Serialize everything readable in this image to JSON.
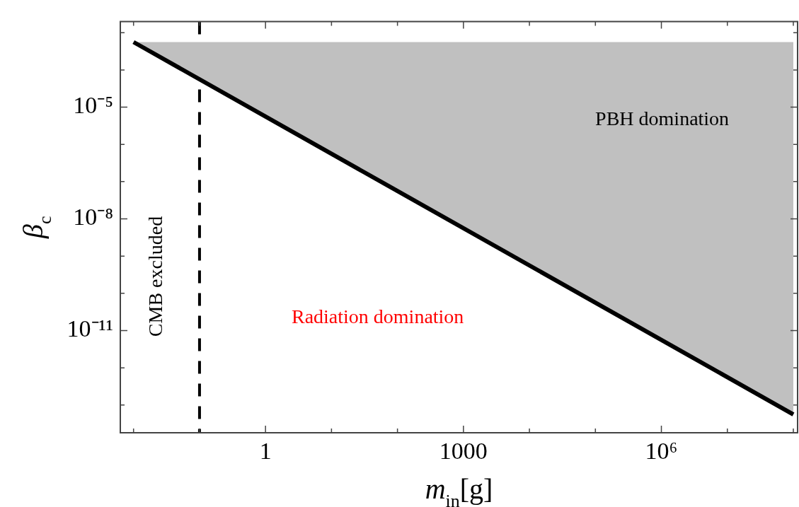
{
  "chart_data": {
    "type": "line",
    "xlabel": "m$_{in}$[g]",
    "ylabel": "β$_{c}$",
    "log": "xy",
    "grid": false,
    "legend": false,
    "xlim": [
      0.0063,
      116000000.0
    ],
    "ylim": [
      1.8e-14,
      0.002
    ],
    "xticks": [
      {
        "value": 0.01,
        "label": null
      },
      {
        "value": 0.1,
        "label": null
      },
      {
        "value": 1,
        "label": "1"
      },
      {
        "value": 10,
        "label": null
      },
      {
        "value": 100,
        "label": null
      },
      {
        "value": 1000,
        "label": "1000"
      },
      {
        "value": 10000,
        "label": null
      },
      {
        "value": 100000,
        "label": null
      },
      {
        "value": 1000000,
        "label": "10⁶"
      },
      {
        "value": 10000000,
        "label": null
      },
      {
        "value": 100000000,
        "label": null
      }
    ],
    "yticks": [
      {
        "value": 0.001,
        "label": null
      },
      {
        "value": 0.0001,
        "label": null
      },
      {
        "value": 1e-05,
        "label": "10⁻⁵"
      },
      {
        "value": 1e-06,
        "label": null
      },
      {
        "value": 1e-07,
        "label": null
      },
      {
        "value": 1e-08,
        "label": "10⁻⁸"
      },
      {
        "value": 1e-09,
        "label": null
      },
      {
        "value": 1e-10,
        "label": null
      },
      {
        "value": 1e-11,
        "label": "10⁻¹¹"
      },
      {
        "value": 1e-12,
        "label": null
      },
      {
        "value": 1e-13,
        "label": null
      }
    ],
    "series": [
      {
        "color": "#000000",
        "x": [
          0.01,
          100000000
        ],
        "values": [
          0.00056,
          5.6e-14
        ],
        "lower": [
          0.00056,
          5.6e-14
        ],
        "upper": [
          0.00056,
          0.00056
        ]
      }
    ],
    "marker": "none",
    "line_style": "solid",
    "ref_lines": [
      {
        "axis": "x",
        "value": 0.1,
        "label": "CMB excluded",
        "color": "#000000",
        "line_style": "dashed"
      }
    ],
    "annotations": [
      "PBH domination",
      "Radiation domination"
    ]
  }
}
